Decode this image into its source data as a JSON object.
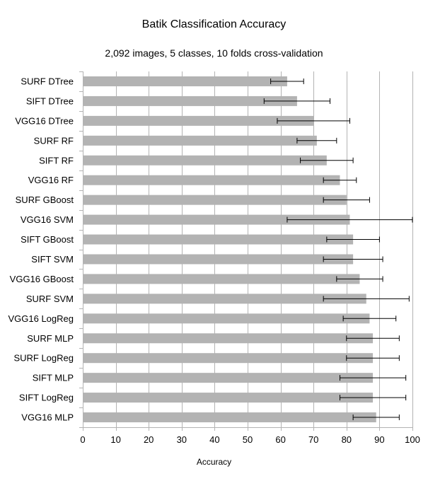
{
  "chart_data": {
    "type": "bar",
    "orientation": "horizontal",
    "title": "Batik Classification Accuracy",
    "subtitle": "2,092 images, 5 classes, 10 folds cross-validation",
    "xlabel": "Accuracy",
    "ylabel": "",
    "xlim": [
      0,
      100
    ],
    "xticks": [
      0,
      10,
      20,
      30,
      40,
      50,
      60,
      70,
      80,
      90,
      100
    ],
    "grid": "vertical",
    "legend": "none",
    "bar_color": "#b3b3b3",
    "grid_color": "#b3b3b3",
    "errorbar_color": "#000000",
    "categories": [
      "SURF DTree",
      "SIFT DTree",
      "VGG16 DTree",
      "SURF RF",
      "SIFT RF",
      "VGG16 RF",
      "SURF GBoost",
      "VGG16 SVM",
      "SIFT GBoost",
      "SIFT SVM",
      "VGG16 GBoost",
      "SURF SVM",
      "VGG16 LogReg",
      "SURF MLP",
      "SURF LogReg",
      "SIFT MLP",
      "SIFT LogReg",
      "VGG16 MLP"
    ],
    "values": [
      62,
      65,
      70,
      71,
      74,
      78,
      80,
      81,
      82,
      82,
      84,
      86,
      87,
      88,
      88,
      88,
      88,
      89
    ],
    "error_low": [
      57,
      55,
      59,
      65,
      66,
      73,
      73,
      62,
      74,
      73,
      77,
      73,
      79,
      80,
      80,
      78,
      78,
      82
    ],
    "error_high": [
      67,
      75,
      81,
      77,
      82,
      83,
      87,
      100,
      90,
      91,
      91,
      99,
      95,
      96,
      96,
      98,
      98,
      96
    ]
  }
}
